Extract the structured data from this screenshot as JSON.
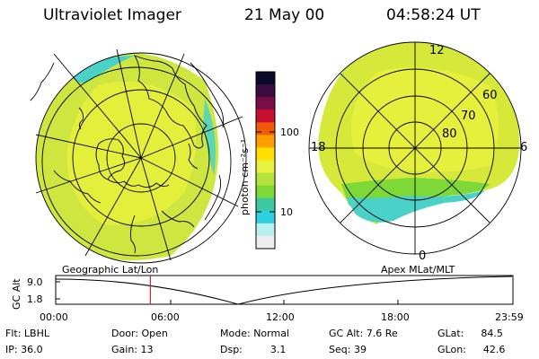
{
  "header": {
    "title": "Ultraviolet Imager",
    "date": "21 May 00",
    "time": "04:58:24 UT"
  },
  "colorbar": {
    "unit_label": "photon cm⁻²s⁻¹",
    "ticks": [
      "100",
      "10"
    ],
    "colors": [
      "#0a0a2a",
      "#3a0d3f",
      "#7a0c46",
      "#c8102e",
      "#f05a0a",
      "#ffa000",
      "#ffe000",
      "#e8f040",
      "#b4e43c",
      "#7ed838",
      "#3cc8a0",
      "#30d0e0",
      "#b8f0f0",
      "#eeeeee"
    ]
  },
  "polar_labels": {
    "mlt": [
      "12",
      "18",
      "6",
      "0"
    ],
    "mlat": [
      "60",
      "70",
      "80"
    ]
  },
  "map_captions": {
    "left": "Geographic Lat/Lon",
    "right": "Apex MLat/MLT"
  },
  "alt_plot": {
    "ylabel": "GC Alt",
    "yticks": [
      "9.0",
      "1.8"
    ],
    "xticks": [
      "00:00",
      "06:00",
      "12:00",
      "18:00",
      "23:59"
    ],
    "current_time_hours": 4.97
  },
  "status": {
    "filter": {
      "label": "Flt:",
      "value": "LBHL"
    },
    "ip": {
      "label": "IP:",
      "value": "36.0"
    },
    "door": {
      "label": "Door:",
      "value": "Open"
    },
    "gain": {
      "label": "Gain:",
      "value": "13"
    },
    "mode": {
      "label": "Mode:",
      "value": "Normal"
    },
    "dsp": {
      "label": "Dsp:",
      "value": "3.1"
    },
    "gc_alt": {
      "label": "GC Alt:",
      "value": "7.6 Re"
    },
    "seq": {
      "label": "Seq:",
      "value": "39"
    },
    "glat": {
      "label": "GLat:",
      "value": "84.5"
    },
    "glon": {
      "label": "GLon:",
      "value": "42.6"
    }
  }
}
